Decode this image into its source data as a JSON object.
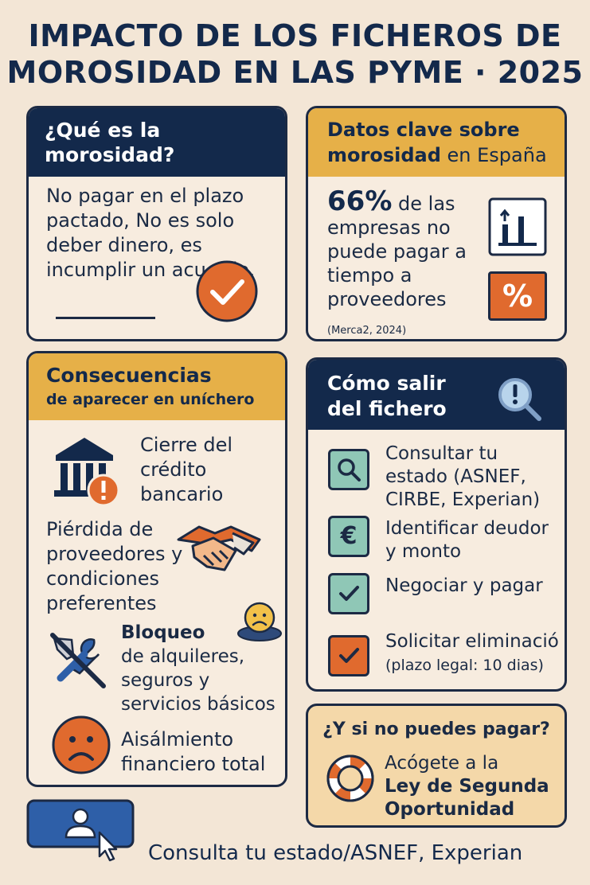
{
  "title": {
    "line1": "IMPACTO DE LOS FICHEROS DE",
    "line2": "MOROSIDAD EN LAS PYME · 2025"
  },
  "morosidad": {
    "heading": "¿Qué es la morosidad?",
    "text": "No pagar en el plazo pactado, No es solo deber dinero, es incumplir un acuerdo."
  },
  "datos": {
    "heading_part1": "Datos clave sobre",
    "heading_bold": "morosidad",
    "heading_part2": " en España",
    "stat": "66%",
    "stat_text_1": " de las",
    "stat_text_2": "empresas no puede pagar a tiempo a proveedores",
    "source": "(Merca2, 2024)",
    "percent_symbol": "%"
  },
  "consecuencias": {
    "heading_line1": "Consecuencias",
    "heading_line2": "de aparecer en uníchero",
    "items": [
      {
        "text": "Cierre del crédito bancario",
        "icon": "bank-icon"
      },
      {
        "text": "Piérdida de proveedores y condiciones preferentes",
        "icon": "handshake-icon"
      },
      {
        "text_bold": "Bloqueo",
        "text": "de alquileres, seguros y servicios básicos",
        "icon": "tools-blocked-icon"
      },
      {
        "text": "Aisálmiento financiero total",
        "icon": "sad-face-icon"
      }
    ]
  },
  "salir": {
    "heading": "Cómo salir del fichero",
    "steps": [
      {
        "text": "Consultar tu estado (ASNEF, CIRBE, Experian)",
        "icon": "search-icon"
      },
      {
        "text": "Identificar deudor y monto",
        "icon": "euro-icon"
      },
      {
        "text": "Negociar y pagar",
        "icon": "check-icon"
      },
      {
        "text": "Solicitar eliminació",
        "note": "(plazo legal: 10 dias)",
        "icon": "check-icon"
      }
    ],
    "euro_symbol": "€"
  },
  "pagar": {
    "question": "¿Y si no puedes pagar?",
    "line1": "Acógete a la",
    "line2": "Ley de Segunda Oportunidad"
  },
  "footer": {
    "text": "Consulta tu estado/ASNEF, Experian"
  },
  "colors": {
    "navy": "#13294b",
    "gold": "#e6b048",
    "orange": "#e06a2e",
    "teal": "#8fc7b6",
    "background": "#f3e6d6"
  }
}
